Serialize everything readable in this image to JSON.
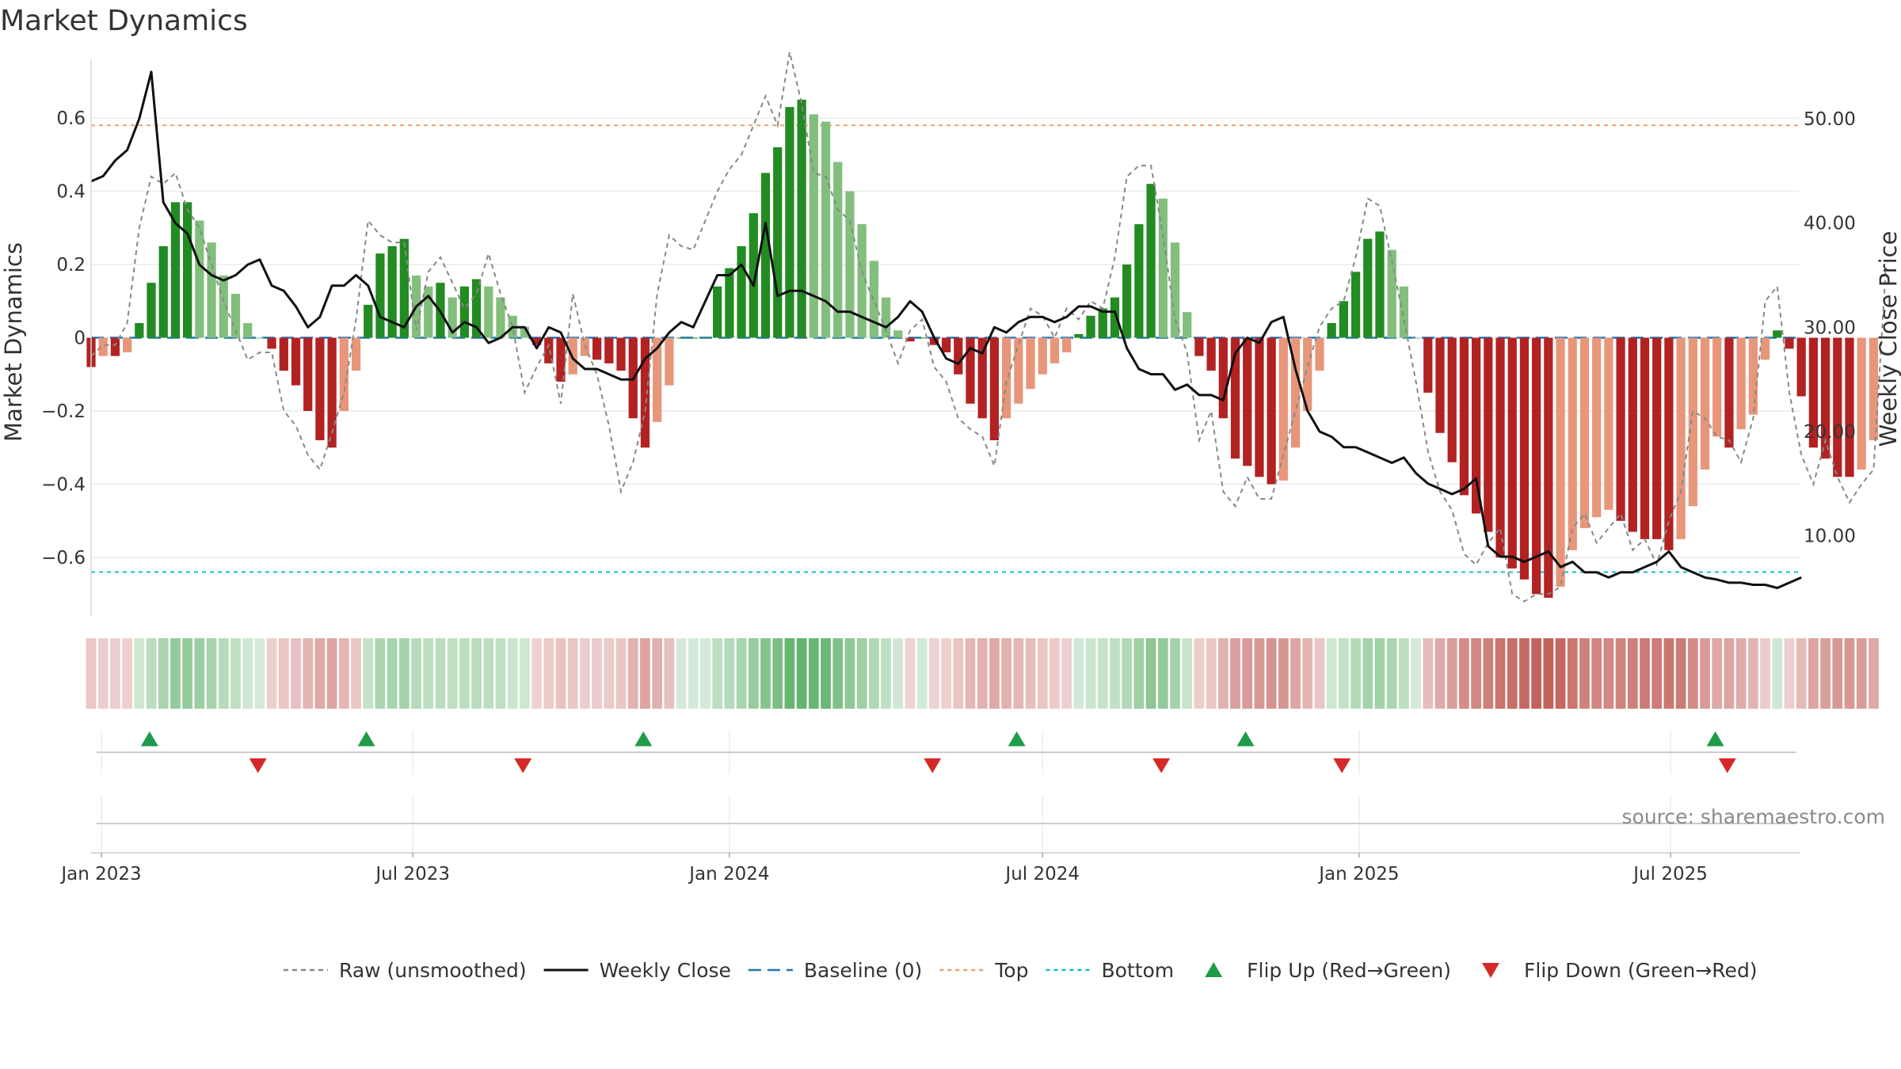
{
  "chart_data": {
    "type": "bar",
    "title": "Market Dynamics",
    "ylabel_left": "Market Dynamics",
    "ylabel_right": "Weekly Close Price",
    "source": "source: sharemaestro.com",
    "y_left_range": [
      -0.76,
      0.76
    ],
    "y_left_ticks": [
      -0.6,
      -0.4,
      -0.2,
      0,
      0.2,
      0.4,
      0.6
    ],
    "y_left_tick_labels": [
      "−0.6",
      "−0.4",
      "−0.2",
      "0",
      "0.2",
      "0.4",
      "0.6"
    ],
    "y_right_range": [
      2.3,
      55.7
    ],
    "y_right_ticks": [
      10,
      20,
      30,
      40,
      50
    ],
    "y_right_tick_labels": [
      "10.00",
      "20.00",
      "30.00",
      "40.00",
      "50.00"
    ],
    "x_range": [
      "2022-12-26",
      "2025-09-14"
    ],
    "x_ticks": [
      "2023-01-01",
      "2023-07-01",
      "2024-01-01",
      "2024-07-01",
      "2025-01-01",
      "2025-07-01"
    ],
    "x_tick_labels": [
      "Jan 2023",
      "Jul 2023",
      "Jan 2024",
      "Jul 2024",
      "Jan 2025",
      "Jul 2025"
    ],
    "start_date": "2022-12-26",
    "reference_lines": {
      "top": 0.58,
      "bottom": -0.64,
      "baseline": 0
    },
    "bars": [
      -0.08,
      -0.05,
      -0.05,
      -0.04,
      0.04,
      0.15,
      0.25,
      0.37,
      0.37,
      0.32,
      0.26,
      0.17,
      0.12,
      0.04,
      0,
      -0.03,
      -0.09,
      -0.13,
      -0.2,
      -0.28,
      -0.3,
      -0.2,
      -0.09,
      0.09,
      0.23,
      0.25,
      0.27,
      0.17,
      0.14,
      0.15,
      0.11,
      0.14,
      0.16,
      0.14,
      0.11,
      0.06,
      0.03,
      -0.02,
      -0.07,
      -0.12,
      -0.1,
      -0.05,
      -0.06,
      -0.07,
      -0.09,
      -0.22,
      -0.3,
      -0.23,
      -0.13,
      0,
      0,
      0,
      0.14,
      0.19,
      0.25,
      0.34,
      0.45,
      0.52,
      0.63,
      0.65,
      0.61,
      0.59,
      0.48,
      0.4,
      0.31,
      0.21,
      0.11,
      0.02,
      -0.01,
      0,
      -0.02,
      -0.04,
      -0.1,
      -0.18,
      -0.22,
      -0.28,
      -0.22,
      -0.18,
      -0.14,
      -0.1,
      -0.07,
      -0.04,
      0.01,
      0.06,
      0.08,
      0.11,
      0.2,
      0.31,
      0.42,
      0.38,
      0.26,
      0.07,
      -0.05,
      -0.09,
      -0.22,
      -0.33,
      -0.35,
      -0.38,
      -0.4,
      -0.39,
      -0.3,
      -0.2,
      -0.09,
      0.04,
      0.1,
      0.18,
      0.27,
      0.29,
      0.24,
      0.14,
      0,
      -0.15,
      -0.26,
      -0.34,
      -0.43,
      -0.48,
      -0.53,
      -0.6,
      -0.63,
      -0.66,
      -0.7,
      -0.71,
      -0.68,
      -0.58,
      -0.52,
      -0.49,
      -0.47,
      -0.5,
      -0.53,
      -0.55,
      -0.55,
      -0.58,
      -0.55,
      -0.46,
      -0.36,
      -0.27,
      -0.3,
      -0.25,
      -0.21,
      -0.06,
      0.02,
      -0.03,
      -0.16,
      -0.3,
      -0.33,
      -0.38,
      -0.38,
      -0.36,
      -0.28
    ],
    "raw": [
      -0.05,
      -0.02,
      -0.02,
      0.04,
      0.3,
      0.44,
      0.42,
      0.45,
      0.35,
      0.3,
      0.2,
      0.1,
      0.02,
      -0.06,
      -0.04,
      -0.04,
      -0.2,
      -0.24,
      -0.32,
      -0.36,
      -0.26,
      -0.15,
      0.05,
      0.32,
      0.28,
      0.26,
      0.26,
      0.02,
      0.18,
      0.22,
      0.15,
      0.08,
      0.12,
      0.23,
      0.12,
      0.03,
      -0.15,
      -0.08,
      -0.02,
      -0.18,
      0.12,
      -0.02,
      -0.1,
      -0.24,
      -0.42,
      -0.34,
      -0.2,
      0.12,
      0.28,
      0.25,
      0.24,
      0.32,
      0.4,
      0.46,
      0.5,
      0.58,
      0.66,
      0.58,
      0.78,
      0.64,
      0.45,
      0.44,
      0.35,
      0.32,
      0.18,
      0.1,
      0.02,
      -0.07,
      0.02,
      0.05,
      -0.08,
      -0.12,
      -0.22,
      -0.25,
      -0.27,
      -0.35,
      -0.12,
      -0.02,
      0.08,
      0.06,
      0.0,
      0.08,
      0.05,
      0.1,
      0.08,
      0.22,
      0.44,
      0.47,
      0.47,
      0.28,
      0.05,
      -0.04,
      -0.28,
      -0.2,
      -0.42,
      -0.46,
      -0.38,
      -0.44,
      -0.44,
      -0.32,
      -0.2,
      -0.08,
      0.03,
      0.08,
      0.1,
      0.22,
      0.38,
      0.36,
      0.21,
      0.05,
      -0.12,
      -0.31,
      -0.42,
      -0.47,
      -0.59,
      -0.62,
      -0.56,
      -0.52,
      -0.7,
      -0.72,
      -0.7,
      -0.7,
      -0.68,
      -0.52,
      -0.48,
      -0.56,
      -0.52,
      -0.48,
      -0.58,
      -0.55,
      -0.62,
      -0.5,
      -0.42,
      -0.2,
      -0.22,
      -0.27,
      -0.28,
      -0.34,
      -0.22,
      0.1,
      0.14,
      -0.15,
      -0.32,
      -0.4,
      -0.28,
      -0.38,
      -0.45,
      -0.4,
      -0.36,
      0.18
    ],
    "close": [
      44.0,
      44.5,
      46.0,
      47.0,
      50.0,
      54.5,
      42.0,
      40.0,
      39.0,
      36.0,
      35.0,
      34.5,
      35.0,
      36.0,
      36.5,
      34.0,
      33.5,
      32.0,
      30.0,
      31.0,
      34.0,
      34.0,
      35.0,
      34.0,
      31.0,
      30.5,
      30.0,
      32.0,
      33.0,
      31.5,
      29.5,
      30.5,
      30.0,
      28.5,
      29.0,
      30.0,
      30.0,
      28.0,
      30.0,
      29.5,
      27.0,
      26.0,
      26.0,
      25.5,
      25.0,
      25.0,
      27.0,
      28.0,
      29.5,
      30.5,
      30.0,
      32.5,
      35.0,
      35.0,
      36.0,
      34.0,
      40.0,
      33.0,
      33.5,
      33.5,
      33.0,
      32.5,
      31.5,
      31.5,
      31.0,
      30.5,
      30.0,
      31.0,
      32.5,
      31.5,
      29.0,
      27.0,
      26.5,
      28.0,
      27.5,
      30.0,
      29.5,
      30.5,
      31.0,
      31.0,
      30.5,
      31.0,
      32.0,
      32.0,
      31.5,
      31.5,
      28.0,
      26.0,
      25.5,
      25.5,
      24.0,
      24.5,
      23.5,
      23.5,
      23.0,
      27.5,
      29.0,
      28.5,
      30.5,
      31.0,
      26.0,
      22.0,
      20.0,
      19.5,
      18.5,
      18.5,
      18.0,
      17.5,
      17.0,
      17.5,
      16.0,
      15.0,
      14.5,
      14.0,
      14.5,
      15.5,
      9.0,
      8.0,
      8.0,
      7.5,
      8.0,
      8.5,
      7.0,
      7.5,
      6.5,
      6.5,
      6.0,
      6.5,
      6.5,
      7.0,
      7.5,
      8.5,
      7.0,
      6.5,
      6.0,
      5.8,
      5.5,
      5.5,
      5.3,
      5.3,
      5.0,
      5.5,
      6.0
    ],
    "flip_up_dates": [
      "2023-01-29",
      "2023-06-04",
      "2023-11-12",
      "2024-06-16",
      "2024-10-27",
      "2025-07-27"
    ],
    "flip_down_dates": [
      "2023-04-02",
      "2023-09-03",
      "2024-04-28",
      "2024-09-08",
      "2024-12-22",
      "2025-08-03"
    ],
    "colors": {
      "bar_pos_strong": "#228b22",
      "bar_pos_weak": "#82bf7d",
      "bar_neg_strong": "#b22222",
      "bar_neg_weak": "#e8967a",
      "raw_line": "#888888",
      "close_line": "#111111",
      "baseline": "#1f77b4",
      "top_line": "#f0a070",
      "bottom_line": "#17becf",
      "flip_up": "#1e9c4a",
      "flip_down": "#d62828"
    },
    "legend": [
      {
        "label": "Raw (unsmoothed)",
        "type": "dashed-line",
        "color": "#888888"
      },
      {
        "label": "Weekly Close",
        "type": "line",
        "color": "#111111"
      },
      {
        "label": "Baseline (0)",
        "type": "dashed-line",
        "color": "#1f77b4"
      },
      {
        "label": "Top",
        "type": "dotted-line",
        "color": "#f0a070"
      },
      {
        "label": "Bottom",
        "type": "dotted-line",
        "color": "#17becf"
      },
      {
        "label": "Flip Up (Red→Green)",
        "type": "triangle-up",
        "color": "#1e9c4a"
      },
      {
        "label": "Flip Down (Green→Red)",
        "type": "triangle-down",
        "color": "#d62828"
      }
    ]
  }
}
